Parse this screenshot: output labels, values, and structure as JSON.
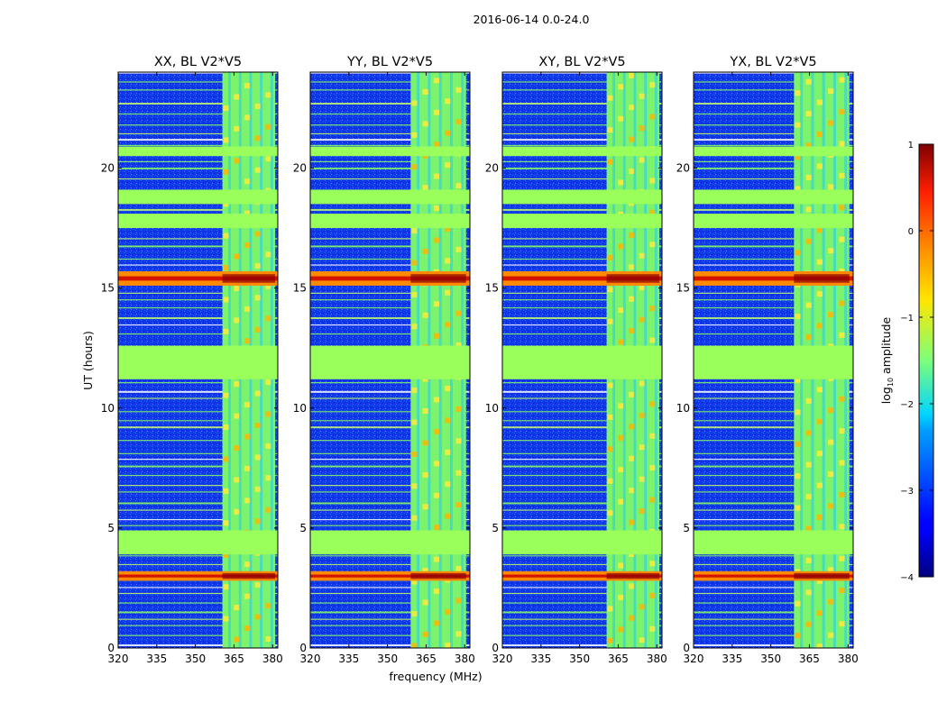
{
  "figure_title": "2016-06-14 0.0-24.0",
  "chart_data": {
    "type": "heatmap",
    "title": "2016-06-14 0.0-24.0",
    "xlabel": "frequency (MHz)",
    "ylabel": "UT (hours)",
    "xlim": [
      320,
      382
    ],
    "ylim": [
      0,
      24
    ],
    "xticks": [
      320,
      335,
      350,
      365,
      380
    ],
    "yticks": [
      0,
      5,
      10,
      15,
      20
    ],
    "panels": [
      {
        "title": "XX, BL V2*V5",
        "rfi_band": [
          360.5,
          381
        ]
      },
      {
        "title": "YY, BL V2*V5",
        "rfi_band": [
          359,
          380.5
        ]
      },
      {
        "title": "XY, BL V2*V5",
        "rfi_band": [
          360.5,
          381
        ]
      },
      {
        "title": "YX, BL V2*V5",
        "rfi_band": [
          359,
          380.5
        ]
      }
    ],
    "flagged_time_ranges": [
      [
        3.9,
        4.9
      ],
      [
        11.2,
        12.6
      ],
      [
        17.5,
        18.1
      ],
      [
        18.5,
        19.1
      ],
      [
        20.5,
        20.9
      ]
    ],
    "high_amplitude_time_ranges": [
      [
        2.8,
        3.2
      ],
      [
        15.1,
        15.7
      ]
    ],
    "colorbar": {
      "label": "log₁₀ amplitude",
      "label_base": "log",
      "label_sub": "10",
      "label_rest": "amplitude",
      "range": [
        -4,
        1
      ],
      "ticks": [
        "1",
        "0",
        "−1",
        "−2",
        "−3",
        "−4"
      ],
      "tick_values": [
        1,
        0,
        -1,
        -2,
        -3,
        -4
      ],
      "colormap": "jet"
    }
  }
}
